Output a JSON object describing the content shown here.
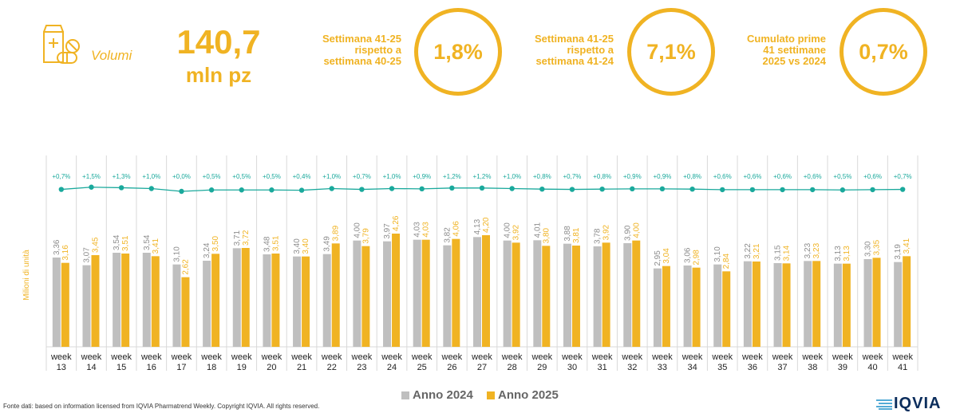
{
  "header": {
    "icon": "medicine-box-icon",
    "volumi_label": "Volumi",
    "total_value": "140,7",
    "total_unit": "mln pz",
    "kpis": [
      {
        "label_lines": [
          "Settimana 41-25",
          "rispetto a",
          "settimana 40-25"
        ],
        "value": "1,8%"
      },
      {
        "label_lines": [
          "Settimana 41-25",
          "rispetto a",
          "settimana 41-24"
        ],
        "value": "7,1%"
      },
      {
        "label_lines": [
          "Cumulato prime",
          "41 settimane",
          "2025 vs 2024"
        ],
        "value": "0,7%"
      }
    ]
  },
  "colors": {
    "accent": "#f0b323",
    "bar2024": "#bfbfbf",
    "bar2025": "#f0b323",
    "line": "#1aa99c",
    "grid": "#d9d9d9"
  },
  "chart_data": {
    "type": "bar",
    "ylabel": "Milioni di unità",
    "categories": [
      "week 13",
      "week 14",
      "week 15",
      "week 16",
      "week 17",
      "week 18",
      "week 19",
      "week 20",
      "week 21",
      "week 22",
      "week 23",
      "week 24",
      "week 25",
      "week 26",
      "week 27",
      "week 28",
      "week 29",
      "week 30",
      "week 31",
      "week 32",
      "week 33",
      "week 34",
      "week 35",
      "week 36",
      "week 37",
      "week 38",
      "week 39",
      "week 40",
      "week 41"
    ],
    "category_lines": [
      [
        "week",
        "13"
      ],
      [
        "week",
        "14"
      ],
      [
        "week",
        "15"
      ],
      [
        "week",
        "16"
      ],
      [
        "week",
        "17"
      ],
      [
        "week",
        "18"
      ],
      [
        "week",
        "19"
      ],
      [
        "week",
        "20"
      ],
      [
        "week",
        "21"
      ],
      [
        "week",
        "22"
      ],
      [
        "week",
        "23"
      ],
      [
        "week",
        "24"
      ],
      [
        "week",
        "25"
      ],
      [
        "week",
        "26"
      ],
      [
        "week",
        "27"
      ],
      [
        "week",
        "28"
      ],
      [
        "week",
        "29"
      ],
      [
        "week",
        "30"
      ],
      [
        "week",
        "31"
      ],
      [
        "week",
        "32"
      ],
      [
        "week",
        "33"
      ],
      [
        "week",
        "34"
      ],
      [
        "week",
        "35"
      ],
      [
        "week",
        "36"
      ],
      [
        "week",
        "37"
      ],
      [
        "week",
        "38"
      ],
      [
        "week",
        "39"
      ],
      [
        "week",
        "40"
      ],
      [
        "week",
        "41"
      ]
    ],
    "series": [
      {
        "name": "Anno 2024",
        "values": [
          3.36,
          3.07,
          3.54,
          3.54,
          3.1,
          3.24,
          3.71,
          3.48,
          3.4,
          3.49,
          4.0,
          3.97,
          4.03,
          3.82,
          4.13,
          4.0,
          4.01,
          3.88,
          3.78,
          3.9,
          2.95,
          3.06,
          3.1,
          3.22,
          3.15,
          3.23,
          3.13,
          3.3,
          3.19
        ],
        "labels": [
          "3,36",
          "3,07",
          "3,54",
          "3,54",
          "3,10",
          "3,24",
          "3,71",
          "3,48",
          "3,40",
          "3,49",
          "4,00",
          "3,97",
          "4,03",
          "3,82",
          "4,13",
          "4,00",
          "4,01",
          "3,88",
          "3,78",
          "3,90",
          "2,95",
          "3,06",
          "3,10",
          "3,22",
          "3,15",
          "3,23",
          "3,13",
          "3,30",
          "3,19"
        ]
      },
      {
        "name": "Anno 2025",
        "values": [
          3.16,
          3.45,
          3.51,
          3.41,
          2.62,
          3.5,
          3.72,
          3.51,
          3.4,
          3.89,
          3.79,
          4.26,
          4.03,
          4.06,
          4.2,
          3.92,
          3.8,
          3.81,
          3.92,
          4.0,
          3.04,
          2.98,
          2.84,
          3.21,
          3.14,
          3.23,
          3.13,
          3.35,
          3.41
        ],
        "labels": [
          "3,16",
          "3,45",
          "3,51",
          "3,41",
          "2,62",
          "3,50",
          "3,72",
          "3,51",
          "3,40",
          "3,89",
          "3,79",
          "4,26",
          "4,03",
          "4,06",
          "4,20",
          "3,92",
          "3,80",
          "3,81",
          "3,92",
          "4,00",
          "3,04",
          "2,98",
          "2,84",
          "3,21",
          "3,14",
          "3,23",
          "3,13",
          "3,35",
          "3,41"
        ]
      }
    ],
    "line": {
      "values": [
        0.7,
        1.5,
        1.3,
        1.0,
        0.0,
        0.5,
        0.5,
        0.5,
        0.4,
        1.0,
        0.7,
        1.0,
        0.9,
        1.2,
        1.2,
        1.0,
        0.8,
        0.7,
        0.8,
        0.9,
        0.9,
        0.8,
        0.6,
        0.6,
        0.6,
        0.6,
        0.5,
        0.6,
        0.7
      ],
      "labels": [
        "+0,7%",
        "+1,5%",
        "+1,3%",
        "+1,0%",
        "+0,0%",
        "+0,5%",
        "+0,5%",
        "+0,5%",
        "+0,4%",
        "+1,0%",
        "+0,7%",
        "+1,0%",
        "+0,9%",
        "+1,2%",
        "+1,2%",
        "+1,0%",
        "+0,8%",
        "+0,7%",
        "+0,8%",
        "+0,9%",
        "+0,9%",
        "+0,8%",
        "+0,6%",
        "+0,6%",
        "+0,6%",
        "+0,6%",
        "+0,5%",
        "+0,6%",
        "+0,7%"
      ]
    },
    "legend_position": "bottom"
  },
  "footer": {
    "source": "Fonte dati: based on information licensed from IQVIA Pharmatrend Weekly. Copyright IQVIA. All rights reserved.",
    "brand": "IQVIA"
  }
}
